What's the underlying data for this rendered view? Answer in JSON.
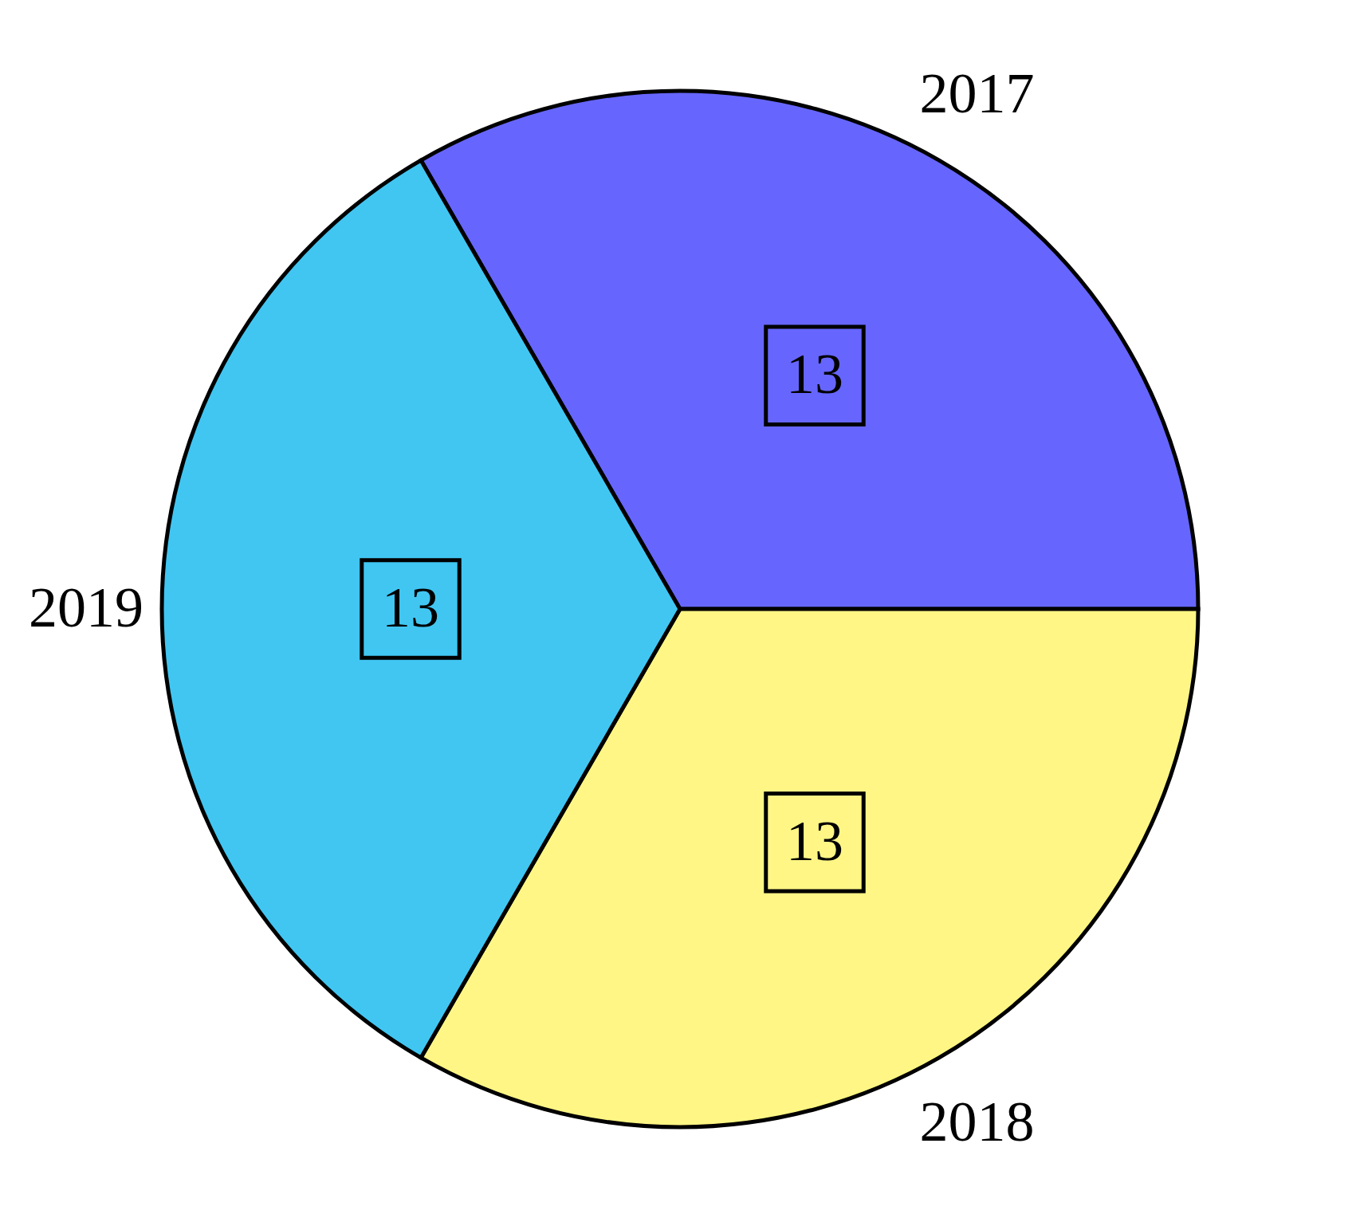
{
  "chart_data": {
    "type": "pie",
    "categories": [
      "2017",
      "2018",
      "2019"
    ],
    "values": [
      13,
      13,
      13
    ],
    "colors": [
      "#6666ff",
      "#fff685",
      "#41c6f2"
    ],
    "data_labels": true
  }
}
